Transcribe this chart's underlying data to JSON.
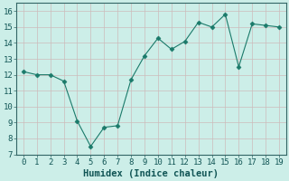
{
  "x": [
    0,
    1,
    2,
    3,
    4,
    5,
    6,
    7,
    8,
    9,
    10,
    11,
    12,
    13,
    14,
    15,
    16,
    17,
    18,
    19
  ],
  "y": [
    12.2,
    12.0,
    12.0,
    11.6,
    9.1,
    7.5,
    8.7,
    8.8,
    11.7,
    13.2,
    14.3,
    13.6,
    14.1,
    15.3,
    15.0,
    15.8,
    12.5,
    15.2,
    15.1,
    15.0
  ],
  "line_color": "#1a7a6a",
  "marker": "D",
  "marker_size": 2.5,
  "bg_color": "#cceee8",
  "grid_color": "#ccbbbb",
  "xlabel": "Humidex (Indice chaleur)",
  "ylim": [
    7,
    16.5
  ],
  "yticks": [
    7,
    8,
    9,
    10,
    11,
    12,
    13,
    14,
    15,
    16
  ],
  "xticks": [
    0,
    1,
    2,
    3,
    4,
    5,
    6,
    7,
    8,
    9,
    10,
    11,
    12,
    13,
    14,
    15,
    16,
    17,
    18,
    19
  ],
  "xlim": [
    -0.5,
    19.5
  ],
  "label_fontsize": 7.5,
  "tick_fontsize": 6.5
}
